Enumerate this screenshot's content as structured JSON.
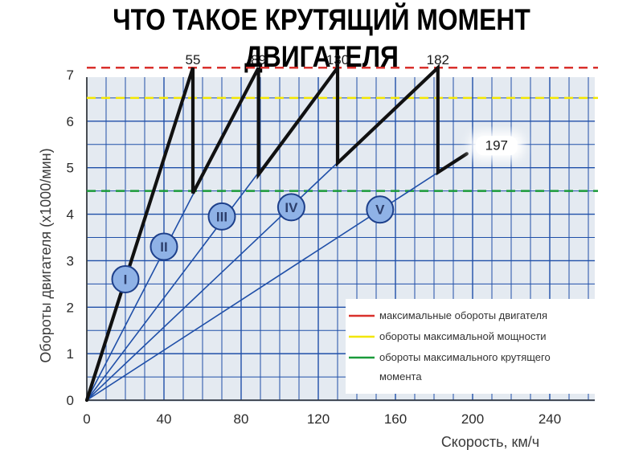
{
  "title": "ЧТО ТАКОЕ КРУТЯЩИЙ МОМЕНТ ДВИГАТЕЛЯ",
  "chart_data": {
    "type": "line",
    "xlabel": "Скорость, км/ч",
    "ylabel": "Обороты двигателя (x1000/мин)",
    "xlim": [
      0,
      290
    ],
    "ylim": [
      0,
      7.5
    ],
    "x_ticks": [
      "0",
      "40",
      "80",
      "120",
      "160",
      "200",
      "240"
    ],
    "y_ticks": [
      "0",
      "1",
      "2",
      "3",
      "4",
      "5",
      "6",
      "7"
    ],
    "grid": true,
    "reference_lines": [
      {
        "label": "максимальные обороты двигателя",
        "y": 7.15,
        "color": "#d9302c"
      },
      {
        "label": "обороты максимальной мощности",
        "y": 6.5,
        "color": "#f2e600"
      },
      {
        "label": "обороты максимального крутящего момента",
        "y": 4.5,
        "color": "#1a9a3a"
      }
    ],
    "gear_lines": [
      {
        "gear": "I",
        "end": [
          55,
          7.15
        ],
        "label_at": [
          20,
          2.6
        ]
      },
      {
        "gear": "II",
        "end": [
          89,
          7.15
        ],
        "label_at": [
          40,
          3.3
        ]
      },
      {
        "gear": "III",
        "end": [
          130,
          7.15
        ],
        "label_at": [
          70,
          3.95
        ]
      },
      {
        "gear": "IV",
        "end": [
          182,
          7.15
        ],
        "label_at": [
          106,
          4.15
        ]
      },
      {
        "gear": "V",
        "end": [
          197,
          5.3
        ],
        "label_at": [
          152,
          4.1
        ]
      }
    ],
    "shift_path": [
      [
        0,
        0
      ],
      [
        55,
        7.15
      ],
      [
        55,
        4.45
      ],
      [
        89,
        7.15
      ],
      [
        89,
        4.85
      ],
      [
        130,
        7.15
      ],
      [
        130,
        5.1
      ],
      [
        182,
        7.15
      ],
      [
        182,
        4.9
      ],
      [
        197,
        5.3
      ]
    ],
    "top_labels": [
      {
        "text": "55",
        "x": 55
      },
      {
        "text": "89",
        "x": 89
      },
      {
        "text": "130",
        "x": 130
      },
      {
        "text": "182",
        "x": 182
      }
    ],
    "point_label": {
      "text": "197",
      "x": 197,
      "y": 5.3
    },
    "legend_position": "bottom-right",
    "colors": {
      "grid": "#1f4fa8",
      "gear_line": "#1f4fa8",
      "shift_path": "#111111",
      "plot_bg": "#e4eaf1",
      "circle_fill": "#8fb2e6"
    }
  }
}
